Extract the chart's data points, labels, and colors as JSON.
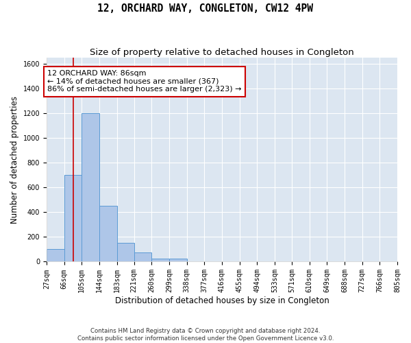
{
  "title": "12, ORCHARD WAY, CONGLETON, CW12 4PW",
  "subtitle": "Size of property relative to detached houses in Congleton",
  "xlabel": "Distribution of detached houses by size in Congleton",
  "ylabel": "Number of detached properties",
  "footer": "Contains HM Land Registry data © Crown copyright and database right 2024.\nContains public sector information licensed under the Open Government Licence v3.0.",
  "bin_edges": [
    27,
    66,
    105,
    144,
    183,
    221,
    260,
    299,
    338,
    377,
    416,
    455,
    494,
    533,
    571,
    610,
    649,
    688,
    727,
    766,
    805
  ],
  "bar_heights": [
    100,
    700,
    1200,
    450,
    150,
    75,
    25,
    25,
    0,
    0,
    0,
    0,
    0,
    0,
    0,
    0,
    0,
    0,
    0,
    0
  ],
  "bar_color": "#aec6e8",
  "bar_edge_color": "#5b9bd5",
  "bg_color": "#dce6f1",
  "fig_bg_color": "#ffffff",
  "grid_color": "#ffffff",
  "property_line_x": 86,
  "property_line_color": "#cc0000",
  "annotation_line1": "12 ORCHARD WAY: 86sqm",
  "annotation_line2": "← 14% of detached houses are smaller (367)",
  "annotation_line3": "86% of semi-detached houses are larger (2,323) →",
  "annotation_box_color": "#cc0000",
  "ylim": [
    0,
    1650
  ],
  "yticks": [
    0,
    200,
    400,
    600,
    800,
    1000,
    1200,
    1400,
    1600
  ],
  "title_fontsize": 10.5,
  "subtitle_fontsize": 9.5,
  "tick_label_fontsize": 7,
  "axis_label_fontsize": 8.5,
  "annotation_fontsize": 8
}
